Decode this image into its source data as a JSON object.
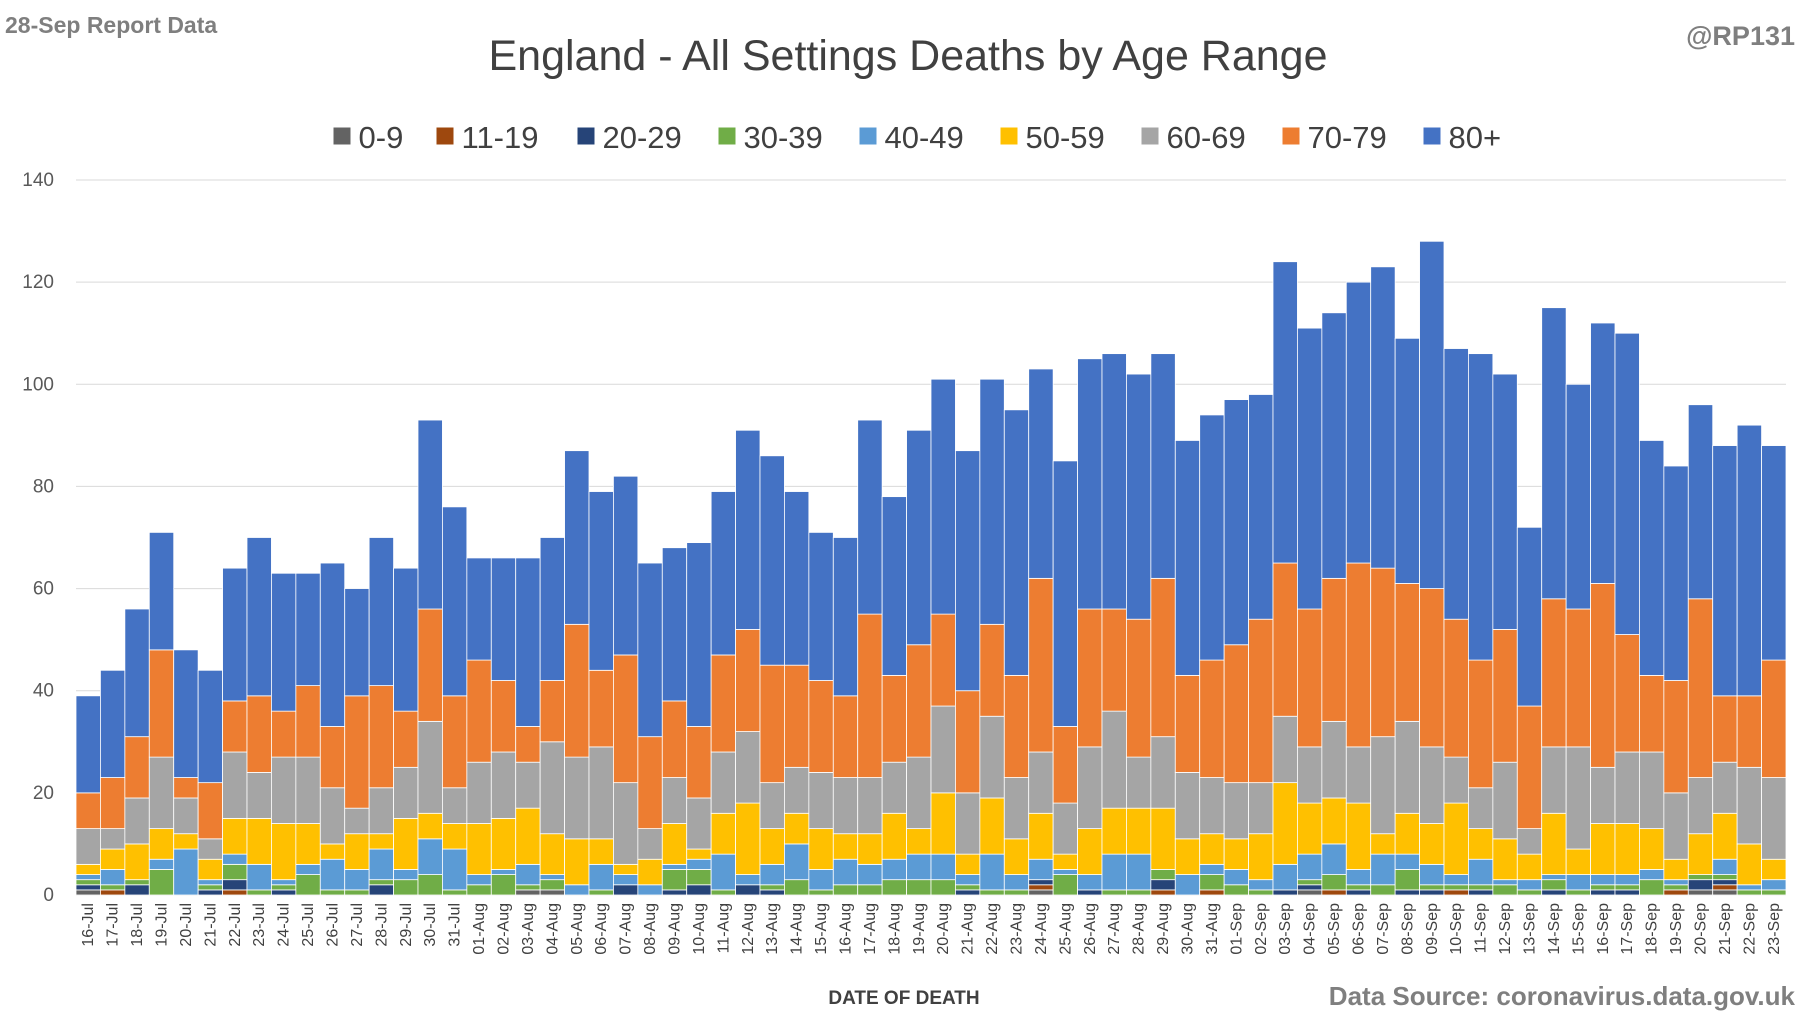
{
  "report_label": "28-Sep Report Data",
  "handle": "@RP131",
  "source": "Data Source: coronavirus.data.gov.uk",
  "colors": {
    "0-9": "#636363",
    "11-19": "#9e480e",
    "20-29": "#264478",
    "30-39": "#70ad47",
    "40-49": "#5b9bd5",
    "50-59": "#ffc000",
    "60-69": "#a5a5a5",
    "70-79": "#ed7d31",
    "80+": "#4472c4"
  },
  "chart_data": {
    "type": "bar",
    "stacked": true,
    "title": "England - All Settings Deaths by Age Range",
    "xlabel": "DATE OF DEATH",
    "ylabel": "",
    "ylim": [
      0,
      140
    ],
    "yticks": [
      0,
      20,
      40,
      60,
      80,
      100,
      120,
      140
    ],
    "grid": true,
    "legend_position": "top",
    "categories": [
      "16-Jul",
      "17-Jul",
      "18-Jul",
      "19-Jul",
      "20-Jul",
      "21-Jul",
      "22-Jul",
      "23-Jul",
      "24-Jul",
      "25-Jul",
      "26-Jul",
      "27-Jul",
      "28-Jul",
      "29-Jul",
      "30-Jul",
      "31-Jul",
      "01-Aug",
      "02-Aug",
      "03-Aug",
      "04-Aug",
      "05-Aug",
      "06-Aug",
      "07-Aug",
      "08-Aug",
      "09-Aug",
      "10-Aug",
      "11-Aug",
      "12-Aug",
      "13-Aug",
      "14-Aug",
      "15-Aug",
      "16-Aug",
      "17-Aug",
      "18-Aug",
      "19-Aug",
      "20-Aug",
      "21-Aug",
      "22-Aug",
      "23-Aug",
      "24-Aug",
      "25-Aug",
      "26-Aug",
      "27-Aug",
      "28-Aug",
      "29-Aug",
      "30-Aug",
      "31-Aug",
      "01-Sep",
      "02-Sep",
      "03-Sep",
      "04-Sep",
      "05-Sep",
      "06-Sep",
      "07-Sep",
      "08-Sep",
      "09-Sep",
      "10-Sep",
      "11-Sep",
      "12-Sep",
      "13-Sep",
      "14-Sep",
      "15-Sep",
      "16-Sep",
      "17-Sep",
      "18-Sep",
      "19-Sep",
      "20-Sep",
      "21-Sep",
      "22-Sep",
      "23-Sep"
    ],
    "series": [
      {
        "name": "0-9",
        "values": [
          1,
          0,
          0,
          0,
          0,
          0,
          0,
          0,
          0,
          0,
          0,
          0,
          0,
          0,
          0,
          0,
          0,
          0,
          1,
          1,
          0,
          0,
          0,
          0,
          0,
          0,
          0,
          0,
          0,
          0,
          0,
          0,
          0,
          0,
          0,
          0,
          0,
          0,
          0,
          1,
          0,
          0,
          0,
          0,
          0,
          0,
          0,
          0,
          0,
          0,
          1,
          0,
          0,
          0,
          0,
          0,
          0,
          0,
          0,
          0,
          0,
          0,
          0,
          0,
          0,
          0,
          1,
          1,
          0,
          0
        ]
      },
      {
        "name": "11-19",
        "values": [
          0,
          1,
          0,
          0,
          0,
          0,
          1,
          0,
          0,
          0,
          0,
          0,
          0,
          0,
          0,
          0,
          0,
          0,
          0,
          0,
          0,
          0,
          0,
          0,
          0,
          0,
          0,
          0,
          0,
          0,
          0,
          0,
          0,
          0,
          0,
          0,
          0,
          0,
          0,
          1,
          0,
          0,
          0,
          0,
          1,
          0,
          1,
          0,
          0,
          0,
          0,
          1,
          0,
          0,
          0,
          0,
          1,
          0,
          0,
          0,
          0,
          0,
          0,
          0,
          0,
          1,
          0,
          1,
          0,
          0
        ]
      },
      {
        "name": "20-29",
        "values": [
          1,
          0,
          2,
          0,
          0,
          1,
          2,
          0,
          1,
          0,
          0,
          0,
          2,
          0,
          0,
          0,
          0,
          0,
          0,
          0,
          0,
          0,
          2,
          0,
          1,
          2,
          0,
          2,
          1,
          0,
          0,
          0,
          0,
          0,
          0,
          0,
          1,
          0,
          0,
          1,
          0,
          1,
          0,
          0,
          2,
          0,
          0,
          0,
          0,
          1,
          1,
          0,
          1,
          0,
          1,
          1,
          0,
          1,
          0,
          0,
          1,
          0,
          1,
          1,
          0,
          0,
          2,
          1,
          0,
          0
        ]
      },
      {
        "name": "30-39",
        "values": [
          1,
          1,
          1,
          5,
          0,
          1,
          3,
          1,
          1,
          4,
          1,
          1,
          1,
          3,
          4,
          1,
          2,
          4,
          1,
          2,
          0,
          1,
          0,
          0,
          4,
          3,
          1,
          0,
          1,
          3,
          1,
          2,
          2,
          3,
          3,
          3,
          1,
          1,
          1,
          0,
          4,
          0,
          1,
          1,
          2,
          0,
          3,
          2,
          1,
          0,
          1,
          3,
          1,
          2,
          4,
          1,
          1,
          1,
          2,
          1,
          2,
          1,
          1,
          1,
          3,
          1,
          1,
          1,
          1,
          1
        ]
      },
      {
        "name": "40-49",
        "values": [
          1,
          3,
          0,
          2,
          9,
          1,
          2,
          5,
          1,
          2,
          6,
          4,
          6,
          2,
          7,
          8,
          2,
          1,
          4,
          1,
          2,
          5,
          2,
          2,
          1,
          2,
          7,
          2,
          4,
          7,
          4,
          5,
          4,
          4,
          5,
          5,
          2,
          7,
          3,
          4,
          1,
          3,
          7,
          7,
          0,
          4,
          2,
          3,
          2,
          5,
          5,
          6,
          3,
          6,
          3,
          4,
          2,
          5,
          1,
          2,
          1,
          3,
          2,
          2,
          2,
          1,
          0,
          3,
          1,
          2
        ]
      },
      {
        "name": "50-59",
        "values": [
          2,
          4,
          7,
          6,
          3,
          4,
          7,
          9,
          11,
          8,
          3,
          7,
          3,
          10,
          5,
          5,
          10,
          10,
          11,
          8,
          9,
          5,
          2,
          5,
          8,
          2,
          8,
          14,
          7,
          6,
          8,
          5,
          6,
          9,
          5,
          12,
          4,
          11,
          7,
          9,
          3,
          9,
          9,
          9,
          12,
          7,
          6,
          6,
          9,
          16,
          10,
          9,
          13,
          4,
          8,
          8,
          14,
          6,
          8,
          5,
          12,
          5,
          10,
          10,
          8,
          4,
          8,
          9,
          8,
          4
        ]
      },
      {
        "name": "60-69",
        "values": [
          7,
          4,
          9,
          14,
          7,
          4,
          13,
          9,
          13,
          13,
          11,
          5,
          9,
          10,
          18,
          7,
          12,
          13,
          9,
          18,
          16,
          18,
          16,
          6,
          9,
          10,
          12,
          14,
          9,
          9,
          11,
          11,
          11,
          10,
          14,
          17,
          12,
          16,
          12,
          12,
          10,
          16,
          19,
          10,
          14,
          13,
          11,
          11,
          10,
          13,
          11,
          15,
          11,
          19,
          18,
          15,
          9,
          8,
          15,
          5,
          13,
          20,
          11,
          14,
          15,
          13,
          11,
          10,
          15,
          16
        ]
      },
      {
        "name": "70-79",
        "values": [
          7,
          10,
          12,
          21,
          4,
          11,
          10,
          15,
          9,
          14,
          12,
          22,
          20,
          11,
          22,
          18,
          20,
          14,
          7,
          12,
          26,
          15,
          25,
          18,
          15,
          14,
          19,
          20,
          23,
          20,
          18,
          16,
          32,
          17,
          22,
          18,
          20,
          18,
          20,
          34,
          15,
          27,
          20,
          27,
          31,
          19,
          23,
          27,
          32,
          30,
          27,
          28,
          36,
          33,
          27,
          31,
          27,
          25,
          26,
          24,
          29,
          27,
          36,
          23,
          15,
          22,
          35,
          13,
          14,
          23
        ]
      },
      {
        "name": "80+",
        "values": [
          19,
          21,
          25,
          23,
          25,
          22,
          26,
          31,
          27,
          22,
          32,
          21,
          29,
          28,
          37,
          37,
          20,
          24,
          33,
          28,
          34,
          35,
          35,
          34,
          30,
          36,
          32,
          39,
          41,
          34,
          29,
          31,
          38,
          35,
          42,
          46,
          47,
          48,
          52,
          41,
          52,
          49,
          50,
          48,
          44,
          46,
          48,
          48,
          44,
          59,
          55,
          52,
          55,
          59,
          48,
          68,
          53,
          60,
          50,
          35,
          57,
          44,
          51,
          59,
          46,
          42,
          38,
          49,
          53,
          42
        ]
      }
    ]
  }
}
